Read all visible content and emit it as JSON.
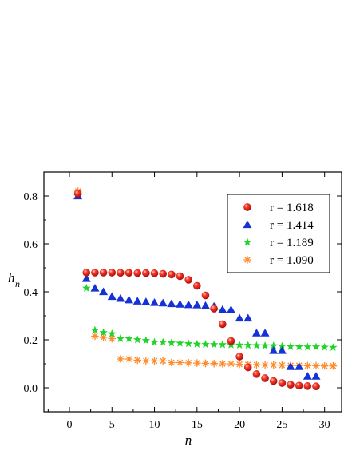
{
  "chart_data": {
    "type": "scatter",
    "title": "",
    "xlabel": "n",
    "ylabel_main": "h",
    "ylabel_sub": "n",
    "xlim": [
      -3,
      32
    ],
    "ylim": [
      -0.1,
      0.9
    ],
    "xticks": [
      0,
      5,
      10,
      15,
      20,
      25,
      30
    ],
    "yticks": [
      0.0,
      0.2,
      0.4,
      0.6,
      0.8
    ],
    "ytick_labels": [
      "0.0",
      "0.2",
      "0.4",
      "0.6",
      "0.8"
    ],
    "xtick_labels": [
      "0",
      "5",
      "10",
      "15",
      "20",
      "25",
      "30"
    ],
    "grid": false,
    "legend_position": "top-right",
    "series": [
      {
        "name": "r = 1.618",
        "marker": "sphere",
        "color": "#e0201b",
        "points": [
          [
            1,
            0.81
          ],
          [
            2,
            0.48
          ],
          [
            3,
            0.48
          ],
          [
            4,
            0.48
          ],
          [
            5,
            0.48
          ],
          [
            6,
            0.479
          ],
          [
            7,
            0.479
          ],
          [
            8,
            0.478
          ],
          [
            9,
            0.478
          ],
          [
            10,
            0.477
          ],
          [
            11,
            0.475
          ],
          [
            12,
            0.472
          ],
          [
            13,
            0.465
          ],
          [
            14,
            0.45
          ],
          [
            15,
            0.425
          ],
          [
            16,
            0.385
          ],
          [
            17,
            0.33
          ],
          [
            18,
            0.265
          ],
          [
            19,
            0.195
          ],
          [
            20,
            0.13
          ],
          [
            21,
            0.085
          ],
          [
            22,
            0.057
          ],
          [
            23,
            0.04
          ],
          [
            24,
            0.028
          ],
          [
            25,
            0.02
          ],
          [
            26,
            0.013
          ],
          [
            27,
            0.009
          ],
          [
            28,
            0.007
          ],
          [
            29,
            0.006
          ]
        ]
      },
      {
        "name": "r = 1.414",
        "marker": "triangle",
        "color": "#1432d6",
        "points": [
          [
            1,
            0.8
          ],
          [
            2,
            0.455
          ],
          [
            3,
            0.415
          ],
          [
            4,
            0.4
          ],
          [
            5,
            0.38
          ],
          [
            6,
            0.372
          ],
          [
            7,
            0.366
          ],
          [
            8,
            0.361
          ],
          [
            9,
            0.358
          ],
          [
            10,
            0.355
          ],
          [
            11,
            0.353
          ],
          [
            12,
            0.35
          ],
          [
            13,
            0.348
          ],
          [
            14,
            0.346
          ],
          [
            15,
            0.345
          ],
          [
            16,
            0.342
          ],
          [
            17,
            0.339
          ],
          [
            18,
            0.326
          ],
          [
            19,
            0.325
          ],
          [
            20,
            0.29
          ],
          [
            21,
            0.29
          ],
          [
            22,
            0.228
          ],
          [
            23,
            0.228
          ],
          [
            24,
            0.155
          ],
          [
            25,
            0.155
          ],
          [
            26,
            0.088
          ],
          [
            27,
            0.088
          ],
          [
            28,
            0.048
          ],
          [
            29,
            0.048
          ]
        ]
      },
      {
        "name": "r = 1.189",
        "marker": "star",
        "color": "#22d42a",
        "points": [
          [
            1,
            0.8
          ],
          [
            2,
            0.415
          ],
          [
            3,
            0.24
          ],
          [
            4,
            0.23
          ],
          [
            5,
            0.225
          ],
          [
            6,
            0.205
          ],
          [
            7,
            0.205
          ],
          [
            8,
            0.2
          ],
          [
            9,
            0.197
          ],
          [
            10,
            0.19
          ],
          [
            11,
            0.19
          ],
          [
            12,
            0.187
          ],
          [
            13,
            0.186
          ],
          [
            14,
            0.184
          ],
          [
            15,
            0.182
          ],
          [
            16,
            0.181
          ],
          [
            17,
            0.18
          ],
          [
            18,
            0.18
          ],
          [
            19,
            0.179
          ],
          [
            20,
            0.178
          ],
          [
            21,
            0.177
          ],
          [
            22,
            0.176
          ],
          [
            23,
            0.175
          ],
          [
            24,
            0.175
          ],
          [
            25,
            0.173
          ],
          [
            26,
            0.172
          ],
          [
            27,
            0.171
          ],
          [
            28,
            0.17
          ],
          [
            29,
            0.17
          ],
          [
            30,
            0.169
          ],
          [
            31,
            0.168
          ]
        ]
      },
      {
        "name": "r = 1.090",
        "marker": "asterisk",
        "color": "#ff8a2a",
        "points": [
          [
            1,
            0.82
          ],
          [
            3,
            0.215
          ],
          [
            4,
            0.21
          ],
          [
            5,
            0.205
          ],
          [
            6,
            0.12
          ],
          [
            7,
            0.12
          ],
          [
            8,
            0.115
          ],
          [
            9,
            0.112
          ],
          [
            10,
            0.112
          ],
          [
            11,
            0.112
          ],
          [
            12,
            0.105
          ],
          [
            13,
            0.105
          ],
          [
            14,
            0.104
          ],
          [
            15,
            0.103
          ],
          [
            16,
            0.102
          ],
          [
            17,
            0.101
          ],
          [
            18,
            0.1
          ],
          [
            19,
            0.1
          ],
          [
            20,
            0.098
          ],
          [
            21,
            0.097
          ],
          [
            22,
            0.096
          ],
          [
            23,
            0.095
          ],
          [
            24,
            0.095
          ],
          [
            25,
            0.094
          ],
          [
            26,
            0.093
          ],
          [
            27,
            0.093
          ],
          [
            28,
            0.092
          ],
          [
            29,
            0.092
          ],
          [
            30,
            0.091
          ],
          [
            31,
            0.091
          ]
        ]
      }
    ]
  }
}
